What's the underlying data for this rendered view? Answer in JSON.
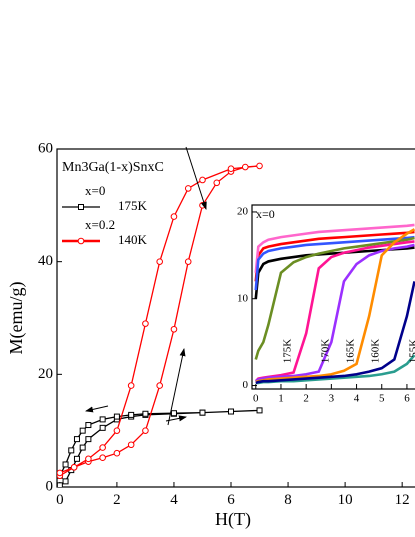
{
  "chart_data": [
    {
      "type": "line",
      "x_label": "H(T)",
      "y_label": "M(emu/g)",
      "legend_title": "Mn3Ga(1-x)SnxC",
      "xlim": [
        -0.1,
        12.45
      ],
      "ylim": [
        0,
        60
      ],
      "xticks": [
        0,
        2,
        4,
        6,
        8,
        10,
        12
      ],
      "yticks": [
        0,
        20,
        40,
        60
      ],
      "series": [
        {
          "name": "175K",
          "composition": "x=0",
          "color": "#000000",
          "marker": "square",
          "x": [
            0,
            0.2,
            0.4,
            0.6,
            0.8,
            1,
            1.5,
            2,
            2.5,
            3,
            4,
            5,
            6,
            7,
            6,
            5,
            4,
            3,
            2.5,
            2,
            1.5,
            1,
            0.8,
            0.6,
            0.4,
            0.2,
            0
          ],
          "values": [
            0.3,
            1,
            3,
            5,
            7,
            8.5,
            10.5,
            12,
            12.5,
            12.8,
            13,
            13.2,
            13.4,
            13.6,
            13.4,
            13.2,
            13.1,
            13,
            12.8,
            12.5,
            12,
            11,
            10,
            8.5,
            6.5,
            4,
            2
          ]
        },
        {
          "name": "140K",
          "composition": "x=0.2",
          "color": "#ff0000",
          "marker": "circle",
          "x": [
            0,
            0.5,
            1,
            1.5,
            2,
            2.5,
            3,
            3.5,
            4,
            4.5,
            5,
            5.5,
            6,
            6.5,
            7,
            6,
            5,
            4.5,
            4,
            3.5,
            3,
            2.5,
            2,
            1.5,
            1,
            0.5,
            0
          ],
          "values": [
            2,
            3.5,
            4.5,
            5.2,
            6,
            7.5,
            10,
            18,
            28,
            40,
            50,
            54,
            56,
            56.8,
            57,
            56.5,
            54.5,
            53,
            48,
            40,
            29,
            18,
            10,
            7,
            5,
            3.5,
            2.5
          ]
        }
      ]
    },
    {
      "type": "line",
      "annotation": "x=0",
      "xlim": [
        -0.15,
        6.32
      ],
      "ylim": [
        -0.4,
        20.8
      ],
      "xticks": [
        0,
        1,
        2,
        3,
        4,
        5,
        6
      ],
      "yticks": [
        0,
        10,
        20
      ],
      "x": [
        0,
        0.1,
        0.3,
        0.5,
        1,
        1.5,
        2,
        2.5,
        3,
        3.5,
        4,
        4.5,
        5,
        5.5,
        6,
        6.3
      ],
      "series": [
        {
          "color": "#000000",
          "values": [
            10,
            13,
            14,
            14.3,
            14.6,
            14.8,
            15,
            15.1,
            15.2,
            15.3,
            15.4,
            15.5,
            15.6,
            15.7,
            15.8,
            15.9
          ]
        },
        {
          "color": "#ff0000",
          "values": [
            12,
            15,
            15.8,
            16,
            16.3,
            16.5,
            16.7,
            16.9,
            17,
            17.1,
            17.2,
            17.3,
            17.4,
            17.5,
            17.6,
            17.7
          ]
        },
        {
          "color": "#ff66cc",
          "values": [
            13,
            16,
            16.5,
            16.8,
            17.1,
            17.3,
            17.5,
            17.7,
            17.8,
            17.9,
            18,
            18.1,
            18.2,
            18.3,
            18.4,
            18.5
          ]
        },
        {
          "color": "#3355ff",
          "values": [
            11,
            14.5,
            15.2,
            15.5,
            15.8,
            16,
            16.2,
            16.3,
            16.4,
            16.5,
            16.6,
            16.7,
            16.8,
            16.9,
            17,
            17.1
          ]
        },
        {
          "color": "#2a9d8f",
          "values": [
            0.3,
            0.3,
            0.4,
            0.4,
            0.5,
            0.5,
            0.6,
            0.7,
            0.8,
            0.9,
            1,
            1.1,
            1.3,
            1.6,
            2.5,
            3.5
          ]
        },
        {
          "name": "175K",
          "color": "#6b8e23",
          "values": [
            3,
            4,
            5,
            7,
            13,
            14.2,
            14.8,
            15.2,
            15.5,
            15.8,
            16,
            16.2,
            16.4,
            16.6,
            16.8,
            17
          ]
        },
        {
          "name": "170K",
          "color": "#ff1493",
          "values": [
            0.5,
            0.8,
            0.9,
            1,
            1.2,
            1.5,
            6,
            13.5,
            14.8,
            15.3,
            15.6,
            15.9,
            16.1,
            16.3,
            16.5,
            16.6
          ]
        },
        {
          "name": "165K",
          "color": "#9b30ff",
          "values": [
            0.5,
            0.7,
            0.8,
            0.9,
            1,
            1.1,
            1.3,
            1.6,
            5,
            12,
            14,
            15,
            15.5,
            15.8,
            16,
            16.2
          ]
        },
        {
          "name": "160K",
          "color": "#ff8c00",
          "values": [
            0.4,
            0.5,
            0.6,
            0.7,
            0.8,
            0.9,
            1,
            1.1,
            1.3,
            1.7,
            2.5,
            8,
            15,
            16.5,
            17.5,
            18
          ]
        },
        {
          "name": "155K",
          "color": "#00008b",
          "values": [
            0.3,
            0.4,
            0.5,
            0.5,
            0.6,
            0.7,
            0.8,
            0.9,
            1,
            1.1,
            1.3,
            1.6,
            2,
            3,
            8,
            12
          ]
        }
      ]
    }
  ]
}
